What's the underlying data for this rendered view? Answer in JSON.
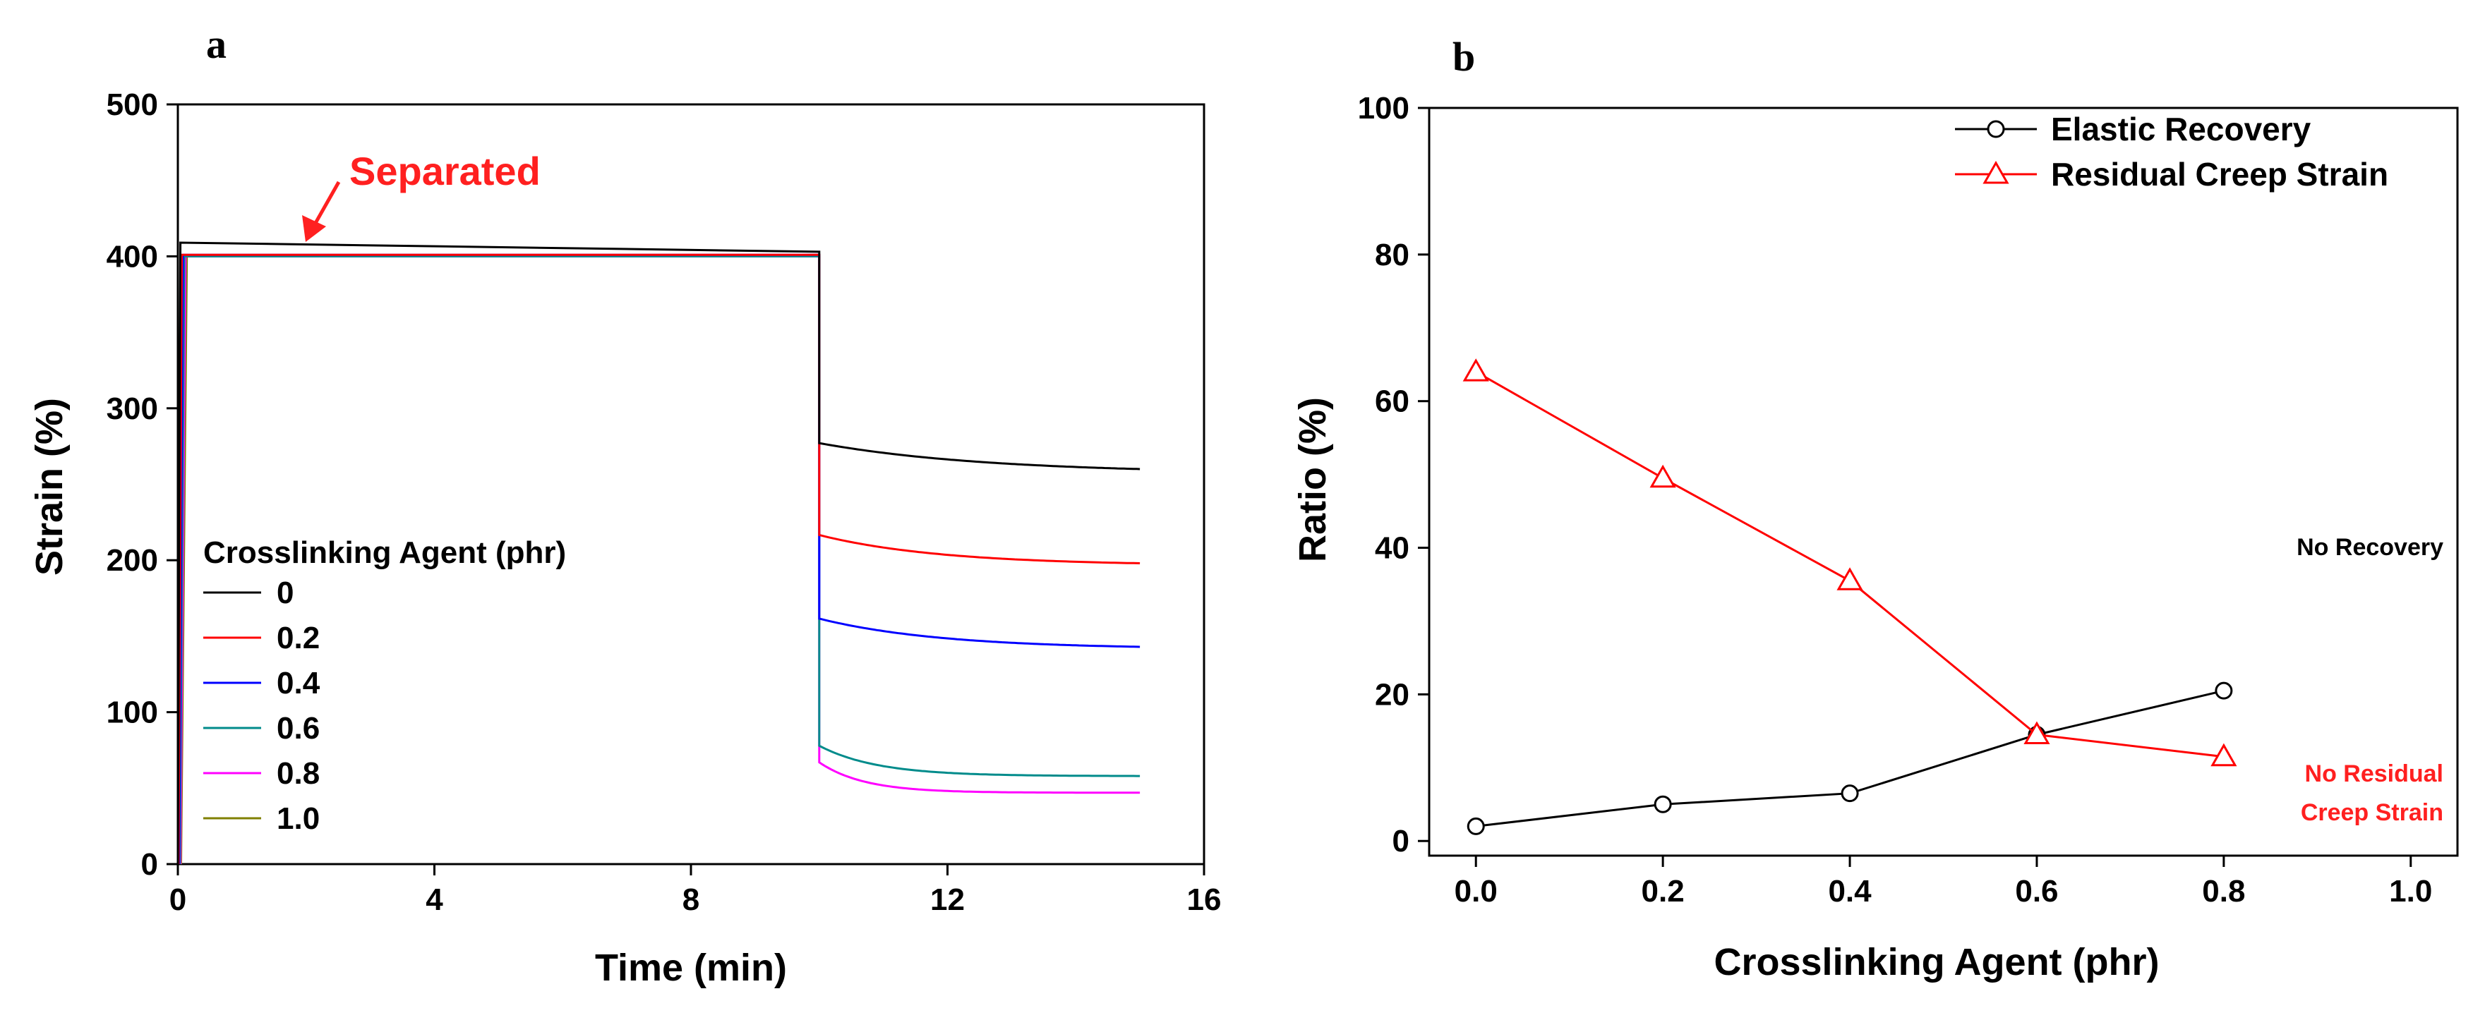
{
  "chart_data": [
    {
      "panel_label": "a",
      "type": "line",
      "xlabel": "Time (min)",
      "ylabel": "Strain (%)",
      "xlim": [
        0,
        16
      ],
      "ylim": [
        0,
        500
      ],
      "xticks": [
        0,
        4,
        8,
        12,
        16
      ],
      "yticks": [
        0,
        100,
        200,
        300,
        400,
        500
      ],
      "legend_title": "Crosslinking Agent (phr)",
      "legend_position": "lower-left",
      "annotation": {
        "text": "Separated",
        "color": "#FF2020",
        "x": 2.0,
        "y": 408
      },
      "load_strain": 400,
      "release_time": 10,
      "end_time": 15,
      "series": [
        {
          "name": "0",
          "color": "#000000",
          "plateau": 403,
          "end_strain": 260,
          "tau": 2.6,
          "separated": true
        },
        {
          "name": "0.2",
          "color": "#FF0000",
          "plateau": 401,
          "end_strain": 198,
          "tau": 1.9,
          "separated": false
        },
        {
          "name": "0.4",
          "color": "#0000FF",
          "plateau": 401,
          "end_strain": 143,
          "tau": 1.9,
          "separated": false
        },
        {
          "name": "0.6",
          "color": "#008B8B",
          "plateau": 400,
          "end_strain": 58,
          "tau": 0.9,
          "separated": false
        },
        {
          "name": "0.8",
          "color": "#FF00FF",
          "plateau": 400,
          "end_strain": 47,
          "tau": 0.7,
          "separated": false
        },
        {
          "name": "1.0",
          "color": "#808000",
          "plateau": 400,
          "end_strain": null,
          "tau": null,
          "separated": true
        }
      ]
    },
    {
      "panel_label": "b",
      "type": "line",
      "xlabel": "Crosslinking Agent (phr)",
      "ylabel": "Ratio (%)",
      "xlim": [
        -0.05,
        1.05
      ],
      "ylim": [
        -2,
        100
      ],
      "xticks": [
        "0.0",
        "0.2",
        "0.4",
        "0.6",
        "0.8",
        "1.0"
      ],
      "yticks": [
        0,
        20,
        40,
        60,
        80,
        100
      ],
      "legend_position": "top-right",
      "series": [
        {
          "name": "Elastic Recovery",
          "color": "#000000",
          "marker": "circle",
          "x": [
            0,
            0.2,
            0.4,
            0.6,
            0.8
          ],
          "y": [
            2,
            5,
            6.5,
            14.5,
            20.5
          ]
        },
        {
          "name": "Residual Creep Strain",
          "color": "#FF0000",
          "marker": "triangle",
          "x": [
            0,
            0.2,
            0.4,
            0.6,
            0.8
          ],
          "y": [
            64,
            49.5,
            35.5,
            14.5,
            11.5
          ]
        }
      ],
      "annotations": [
        {
          "text": "No Recovery",
          "color": "#000000"
        },
        {
          "text": "No Residual",
          "color": "#FF2020"
        },
        {
          "text": "Creep Strain",
          "color": "#FF2020"
        }
      ]
    }
  ]
}
